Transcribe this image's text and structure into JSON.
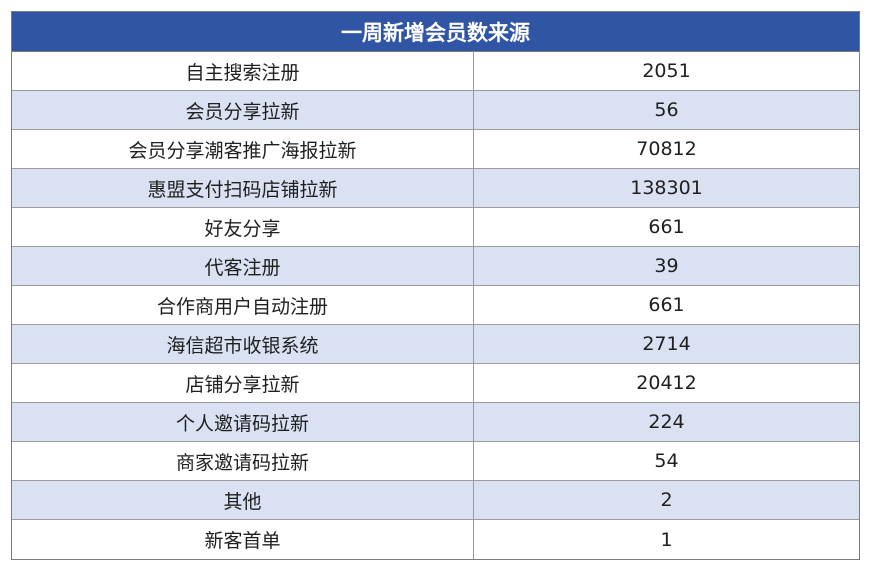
{
  "table": {
    "title": "一周新增会员数来源",
    "rows": [
      {
        "name": "自主搜索注册",
        "value": "2051"
      },
      {
        "name": "会员分享拉新",
        "value": "56"
      },
      {
        "name": "会员分享潮客推广海报拉新",
        "value": "70812"
      },
      {
        "name": "惠盟支付扫码店铺拉新",
        "value": "138301"
      },
      {
        "name": "好友分享",
        "value": "661"
      },
      {
        "name": "代客注册",
        "value": "39"
      },
      {
        "name": "合作商用户自动注册",
        "value": "661"
      },
      {
        "name": "海信超市收银系统",
        "value": "2714"
      },
      {
        "name": "店铺分享拉新",
        "value": "20412"
      },
      {
        "name": "个人邀请码拉新",
        "value": "224"
      },
      {
        "name": "商家邀请码拉新",
        "value": "54"
      },
      {
        "name": "其他",
        "value": "2"
      },
      {
        "name": "新客首单",
        "value": "1"
      }
    ]
  },
  "colors": {
    "header_bg": "#2f55a4",
    "header_text": "#ffffff",
    "alt_row_bg": "#d9e1f2",
    "row_bg": "#ffffff",
    "border": "#9a9a9a"
  },
  "chart_data": {
    "type": "table",
    "title": "一周新增会员数来源",
    "categories": [
      "自主搜索注册",
      "会员分享拉新",
      "会员分享潮客推广海报拉新",
      "惠盟支付扫码店铺拉新",
      "好友分享",
      "代客注册",
      "合作商用户自动注册",
      "海信超市收银系统",
      "店铺分享拉新",
      "个人邀请码拉新",
      "商家邀请码拉新",
      "其他",
      "新客首单"
    ],
    "values": [
      2051,
      56,
      70812,
      138301,
      661,
      39,
      661,
      2714,
      20412,
      224,
      54,
      2,
      1
    ]
  }
}
